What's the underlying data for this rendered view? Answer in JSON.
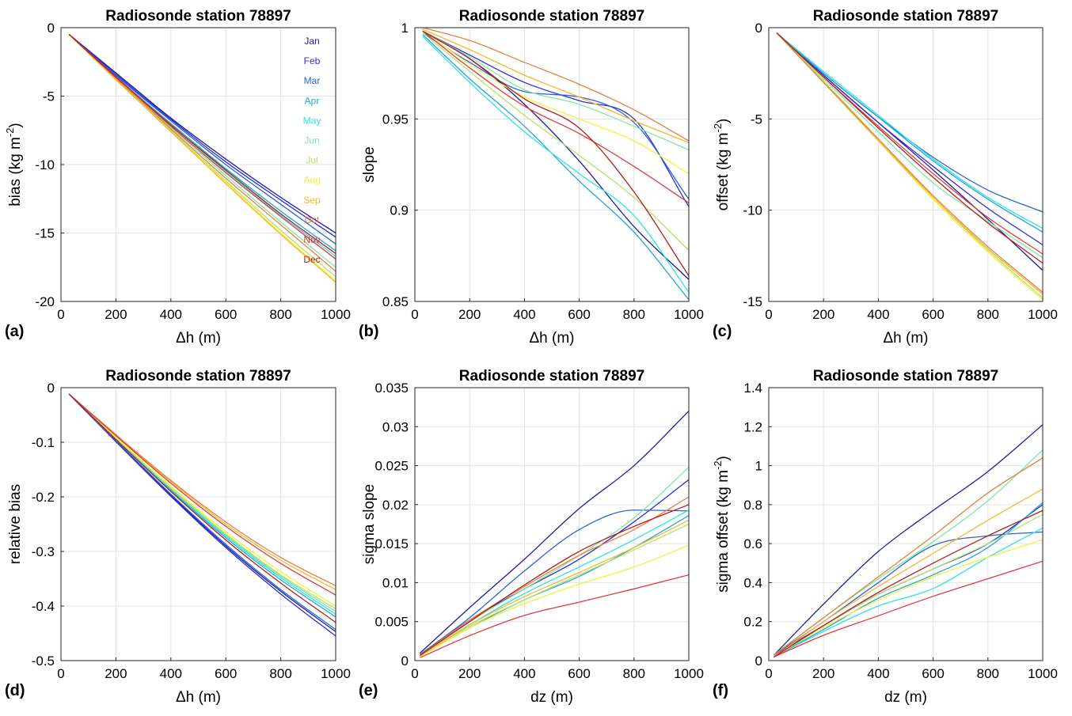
{
  "figure": {
    "colors": {
      "Jan": "#1d1d9e",
      "Feb": "#2e2ed6",
      "Mar": "#2b62d6",
      "Apr": "#21a6d8",
      "May": "#2de3e3",
      "Jun": "#7ee8a6",
      "Jul": "#b4e36a",
      "Aug": "#f2f23a",
      "Sep": "#f5b830",
      "Oct": "#e8803c",
      "Nov": "#e03c3c",
      "Dec": "#b51f1f"
    }
  },
  "chart_data": [
    {
      "type": "line",
      "panel": "(a)",
      "title": "Radiosonde station 78897",
      "xlabel": "Δh (m)",
      "ylabel": "bias (kg m^-2)",
      "xlim": [
        0,
        1000
      ],
      "ylim": [
        -20,
        0
      ],
      "xticks": [
        0,
        200,
        400,
        600,
        800,
        1000
      ],
      "yticks": [
        -20,
        -15,
        -10,
        -5,
        0
      ],
      "grid": true,
      "legend": {
        "placement": "right",
        "entries": [
          "Jan",
          "Feb",
          "Mar",
          "Apr",
          "May",
          "Jun",
          "Jul",
          "Aug",
          "Sep",
          "Oct",
          "Nov",
          "Dec"
        ]
      },
      "x": [
        30,
        200,
        400,
        600,
        800,
        1000
      ],
      "series": [
        {
          "name": "Jan",
          "values": [
            -0.5,
            -3.3,
            -6.6,
            -9.6,
            -12.4,
            -15.0
          ]
        },
        {
          "name": "Feb",
          "values": [
            -0.5,
            -3.4,
            -6.7,
            -9.8,
            -12.6,
            -15.3
          ]
        },
        {
          "name": "Mar",
          "values": [
            -0.5,
            -3.5,
            -6.8,
            -10.0,
            -12.9,
            -15.8
          ]
        },
        {
          "name": "Apr",
          "values": [
            -0.5,
            -3.6,
            -7.0,
            -10.3,
            -13.4,
            -16.3
          ]
        },
        {
          "name": "May",
          "values": [
            -0.5,
            -3.6,
            -7.1,
            -10.5,
            -13.7,
            -16.7
          ]
        },
        {
          "name": "Jun",
          "values": [
            -0.5,
            -3.7,
            -7.3,
            -10.8,
            -14.2,
            -17.5
          ]
        },
        {
          "name": "Jul",
          "values": [
            -0.5,
            -3.8,
            -7.5,
            -11.2,
            -14.8,
            -18.2
          ]
        },
        {
          "name": "Aug",
          "values": [
            -0.5,
            -3.8,
            -7.6,
            -11.3,
            -15.0,
            -18.5
          ]
        },
        {
          "name": "Sep",
          "values": [
            -0.5,
            -3.8,
            -7.6,
            -11.4,
            -15.1,
            -18.6
          ]
        },
        {
          "name": "Oct",
          "values": [
            -0.5,
            -3.7,
            -7.4,
            -11.0,
            -14.4,
            -17.8
          ]
        },
        {
          "name": "Nov",
          "values": [
            -0.5,
            -3.6,
            -7.2,
            -10.6,
            -13.8,
            -16.9
          ]
        },
        {
          "name": "Dec",
          "values": [
            -0.5,
            -3.6,
            -7.1,
            -10.4,
            -13.6,
            -16.5
          ]
        }
      ]
    },
    {
      "type": "line",
      "panel": "(b)",
      "title": "Radiosonde station 78897",
      "xlabel": "Δh (m)",
      "ylabel": "slope",
      "xlim": [
        0,
        1000
      ],
      "ylim": [
        0.85,
        1.0
      ],
      "xticks": [
        0,
        200,
        400,
        600,
        800,
        1000
      ],
      "yticks": [
        0.85,
        0.9,
        0.95,
        1
      ],
      "grid": true,
      "x": [
        30,
        200,
        400,
        600,
        800,
        1000
      ],
      "series": [
        {
          "name": "Jan",
          "values": [
            0.998,
            0.983,
            0.958,
            0.927,
            0.891,
            0.862
          ]
        },
        {
          "name": "Feb",
          "values": [
            0.998,
            0.985,
            0.97,
            0.96,
            0.95,
            0.902
          ]
        },
        {
          "name": "Mar",
          "values": [
            0.997,
            0.981,
            0.965,
            0.962,
            0.948,
            0.906
          ]
        },
        {
          "name": "Apr",
          "values": [
            0.996,
            0.972,
            0.946,
            0.916,
            0.888,
            0.851
          ]
        },
        {
          "name": "May",
          "values": [
            0.995,
            0.97,
            0.943,
            0.92,
            0.897,
            0.855
          ]
        },
        {
          "name": "Jun",
          "values": [
            0.998,
            0.984,
            0.966,
            0.958,
            0.946,
            0.933
          ]
        },
        {
          "name": "Jul",
          "values": [
            0.997,
            0.976,
            0.952,
            0.93,
            0.907,
            0.878
          ]
        },
        {
          "name": "Aug",
          "values": [
            0.998,
            0.98,
            0.962,
            0.95,
            0.938,
            0.92
          ]
        },
        {
          "name": "Sep",
          "values": [
            0.999,
            0.988,
            0.974,
            0.962,
            0.949,
            0.937
          ]
        },
        {
          "name": "Oct",
          "values": [
            1.0,
            0.993,
            0.981,
            0.969,
            0.955,
            0.938
          ]
        },
        {
          "name": "Nov",
          "values": [
            0.998,
            0.978,
            0.957,
            0.942,
            0.924,
            0.904
          ]
        },
        {
          "name": "Dec",
          "values": [
            0.998,
            0.983,
            0.961,
            0.945,
            0.91,
            0.864
          ]
        }
      ]
    },
    {
      "type": "line",
      "panel": "(c)",
      "title": "Radiosonde station 78897",
      "xlabel": "Δh (m)",
      "ylabel": "offset (kg m^-2)",
      "xlim": [
        0,
        1000
      ],
      "ylim": [
        -15,
        0
      ],
      "xticks": [
        0,
        200,
        400,
        600,
        800,
        1000
      ],
      "yticks": [
        -15,
        -10,
        -5,
        0
      ],
      "grid": true,
      "x": [
        30,
        200,
        400,
        600,
        800,
        1000
      ],
      "series": [
        {
          "name": "Jan",
          "values": [
            -0.3,
            -2.6,
            -5.2,
            -7.8,
            -10.5,
            -13.3
          ]
        },
        {
          "name": "Feb",
          "values": [
            -0.3,
            -2.6,
            -5.2,
            -7.6,
            -9.9,
            -11.9
          ]
        },
        {
          "name": "Mar",
          "values": [
            -0.3,
            -2.5,
            -4.9,
            -7.1,
            -8.9,
            -10.1
          ]
        },
        {
          "name": "Apr",
          "values": [
            -0.3,
            -2.5,
            -4.9,
            -7.3,
            -9.4,
            -11.2
          ]
        },
        {
          "name": "May",
          "values": [
            -0.3,
            -2.4,
            -4.8,
            -7.2,
            -9.3,
            -11.0
          ]
        },
        {
          "name": "Jun",
          "values": [
            -0.3,
            -2.8,
            -5.7,
            -8.5,
            -10.6,
            -12.6
          ]
        },
        {
          "name": "Jul",
          "values": [
            -0.3,
            -2.9,
            -6.1,
            -9.3,
            -12.2,
            -14.8
          ]
        },
        {
          "name": "Aug",
          "values": [
            -0.3,
            -3.0,
            -6.2,
            -9.4,
            -12.3,
            -14.9
          ]
        },
        {
          "name": "Sep",
          "values": [
            -0.3,
            -3.0,
            -6.2,
            -9.3,
            -12.1,
            -14.6
          ]
        },
        {
          "name": "Oct",
          "values": [
            -0.3,
            -3.0,
            -6.1,
            -9.2,
            -12.0,
            -14.5
          ]
        },
        {
          "name": "Nov",
          "values": [
            -0.3,
            -2.7,
            -5.4,
            -8.0,
            -10.4,
            -12.4
          ]
        },
        {
          "name": "Dec",
          "values": [
            -0.3,
            -2.7,
            -5.5,
            -8.2,
            -10.7,
            -12.9
          ]
        }
      ]
    },
    {
      "type": "line",
      "panel": "(d)",
      "title": "Radiosonde station 78897",
      "xlabel": "Δh (m)",
      "ylabel": "relative bias",
      "xlim": [
        0,
        1000
      ],
      "ylim": [
        -0.5,
        0
      ],
      "xticks": [
        0,
        200,
        400,
        600,
        800,
        1000
      ],
      "yticks": [
        -0.5,
        -0.4,
        -0.3,
        -0.2,
        -0.1,
        0
      ],
      "grid": true,
      "x": [
        30,
        200,
        400,
        600,
        800,
        1000
      ],
      "series": [
        {
          "name": "Jan",
          "values": [
            -0.012,
            -0.098,
            -0.197,
            -0.29,
            -0.373,
            -0.447
          ]
        },
        {
          "name": "Feb",
          "values": [
            -0.012,
            -0.099,
            -0.199,
            -0.293,
            -0.378,
            -0.455
          ]
        },
        {
          "name": "Mar",
          "values": [
            -0.012,
            -0.097,
            -0.195,
            -0.287,
            -0.37,
            -0.443
          ]
        },
        {
          "name": "Apr",
          "values": [
            -0.012,
            -0.094,
            -0.188,
            -0.275,
            -0.352,
            -0.42
          ]
        },
        {
          "name": "May",
          "values": [
            -0.012,
            -0.093,
            -0.186,
            -0.272,
            -0.348,
            -0.415
          ]
        },
        {
          "name": "Jun",
          "values": [
            -0.012,
            -0.092,
            -0.184,
            -0.27,
            -0.345,
            -0.41
          ]
        },
        {
          "name": "Jul",
          "values": [
            -0.012,
            -0.092,
            -0.183,
            -0.268,
            -0.343,
            -0.405
          ]
        },
        {
          "name": "Aug",
          "values": [
            -0.012,
            -0.091,
            -0.181,
            -0.264,
            -0.337,
            -0.4
          ]
        },
        {
          "name": "Sep",
          "values": [
            -0.012,
            -0.087,
            -0.172,
            -0.25,
            -0.316,
            -0.37
          ]
        },
        {
          "name": "Oct",
          "values": [
            -0.012,
            -0.086,
            -0.17,
            -0.246,
            -0.311,
            -0.363
          ]
        },
        {
          "name": "Nov",
          "values": [
            -0.012,
            -0.088,
            -0.175,
            -0.254,
            -0.322,
            -0.38
          ]
        },
        {
          "name": "Dec",
          "values": [
            -0.012,
            -0.095,
            -0.19,
            -0.279,
            -0.358,
            -0.43
          ]
        }
      ]
    },
    {
      "type": "line",
      "panel": "(e)",
      "title": "Radiosonde station 78897",
      "xlabel": "dz (m)",
      "ylabel": "sigma slope",
      "xlim": [
        0,
        1000
      ],
      "ylim": [
        0,
        0.035
      ],
      "xticks": [
        0,
        200,
        400,
        600,
        800,
        1000
      ],
      "yticks": [
        0,
        0.005,
        0.01,
        0.015,
        0.02,
        0.025,
        0.03,
        0.035
      ],
      "grid": true,
      "x": [
        20,
        200,
        400,
        600,
        800,
        1000
      ],
      "series": [
        {
          "name": "Jan",
          "values": [
            0.001,
            0.0068,
            0.013,
            0.0195,
            0.025,
            0.032
          ]
        },
        {
          "name": "Feb",
          "values": [
            0.0008,
            0.0052,
            0.0092,
            0.013,
            0.0178,
            0.0232
          ]
        },
        {
          "name": "Mar",
          "values": [
            0.0008,
            0.0055,
            0.0115,
            0.0168,
            0.0193,
            0.0192
          ]
        },
        {
          "name": "Apr",
          "values": [
            0.0006,
            0.0042,
            0.0078,
            0.0108,
            0.0145,
            0.0186
          ]
        },
        {
          "name": "May",
          "values": [
            0.0006,
            0.0046,
            0.0086,
            0.012,
            0.0155,
            0.0193
          ]
        },
        {
          "name": "Jun",
          "values": [
            0.0007,
            0.005,
            0.0092,
            0.0135,
            0.0183,
            0.0248
          ]
        },
        {
          "name": "Jul",
          "values": [
            0.0006,
            0.0044,
            0.0078,
            0.011,
            0.0142,
            0.0175
          ]
        },
        {
          "name": "Aug",
          "values": [
            0.0005,
            0.0042,
            0.0073,
            0.0098,
            0.012,
            0.0148
          ]
        },
        {
          "name": "Sep",
          "values": [
            0.0006,
            0.0046,
            0.0082,
            0.0113,
            0.0145,
            0.018
          ]
        },
        {
          "name": "Oct",
          "values": [
            0.0007,
            0.0052,
            0.0095,
            0.0135,
            0.0168,
            0.021
          ]
        },
        {
          "name": "Nov",
          "values": [
            0.0004,
            0.0032,
            0.0058,
            0.0075,
            0.0092,
            0.011
          ]
        },
        {
          "name": "Dec",
          "values": [
            0.0007,
            0.005,
            0.0097,
            0.014,
            0.0172,
            0.02
          ]
        }
      ]
    },
    {
      "type": "line",
      "panel": "(f)",
      "title": "Radiosonde station 78897",
      "xlabel": "dz (m)",
      "ylabel": "sigma offset (kg m^-2)",
      "xlim": [
        0,
        1000
      ],
      "ylim": [
        0,
        1.4
      ],
      "xticks": [
        0,
        200,
        400,
        600,
        800,
        1000
      ],
      "yticks": [
        0,
        0.2,
        0.4,
        0.6,
        0.8,
        1,
        1.2,
        1.4
      ],
      "grid": true,
      "x": [
        20,
        200,
        400,
        600,
        800,
        1000
      ],
      "series": [
        {
          "name": "Jan",
          "values": [
            0.03,
            0.29,
            0.56,
            0.77,
            0.97,
            1.21
          ]
        },
        {
          "name": "Feb",
          "values": [
            0.03,
            0.18,
            0.34,
            0.47,
            0.6,
            0.8
          ]
        },
        {
          "name": "Mar",
          "values": [
            0.03,
            0.2,
            0.4,
            0.59,
            0.64,
            0.66
          ]
        },
        {
          "name": "Apr",
          "values": [
            0.02,
            0.16,
            0.32,
            0.44,
            0.58,
            0.81
          ]
        },
        {
          "name": "May",
          "values": [
            0.02,
            0.15,
            0.28,
            0.37,
            0.53,
            0.68
          ]
        },
        {
          "name": "Jun",
          "values": [
            0.03,
            0.22,
            0.42,
            0.61,
            0.82,
            1.08
          ]
        },
        {
          "name": "Jul",
          "values": [
            0.02,
            0.18,
            0.34,
            0.47,
            0.6,
            0.75
          ]
        },
        {
          "name": "Aug",
          "values": [
            0.02,
            0.17,
            0.31,
            0.43,
            0.53,
            0.62
          ]
        },
        {
          "name": "Sep",
          "values": [
            0.02,
            0.2,
            0.38,
            0.55,
            0.72,
            0.88
          ]
        },
        {
          "name": "Oct",
          "values": [
            0.03,
            0.22,
            0.43,
            0.64,
            0.86,
            1.04
          ]
        },
        {
          "name": "Nov",
          "values": [
            0.02,
            0.13,
            0.23,
            0.33,
            0.42,
            0.51
          ]
        },
        {
          "name": "Dec",
          "values": [
            0.02,
            0.18,
            0.35,
            0.5,
            0.64,
            0.77
          ]
        }
      ]
    }
  ]
}
